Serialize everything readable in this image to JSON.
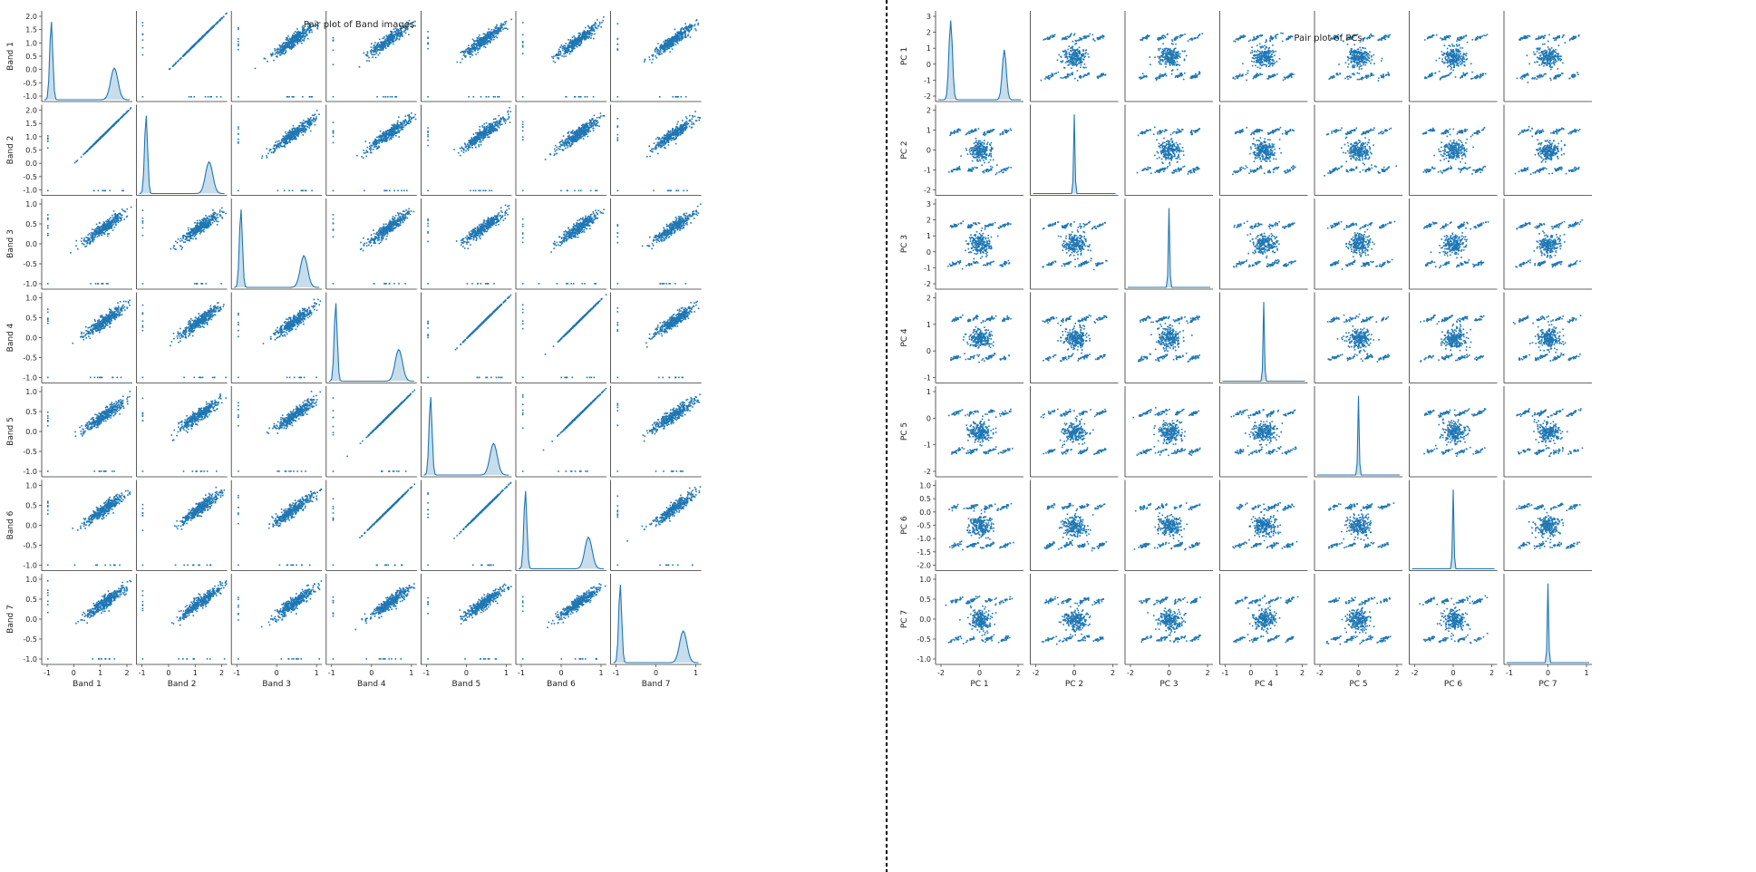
{
  "chart_data": [
    {
      "type": "scatter",
      "subtype": "pair-plot",
      "title": "Pair plot of Band images",
      "variables": [
        "Band 1",
        "Band 2",
        "Band 3",
        "Band 4",
        "Band 5",
        "Band 6",
        "Band 7"
      ],
      "ranges": [
        [
          -1.1,
          2.05
        ],
        [
          -1.1,
          2.05
        ],
        [
          -1.1,
          1.3
        ],
        [
          -1.1,
          1.3
        ],
        [
          -1.1,
          1.3
        ],
        [
          -1.1,
          1.3
        ],
        [
          -1.1,
          1.3
        ]
      ],
      "yticks": [
        [
          "2.0",
          "1.5",
          "1.0",
          "0.5",
          "0.0",
          "-0.5",
          "-1.0"
        ],
        [
          "2.0",
          "1.5",
          "1.0",
          "0.5",
          "0.0",
          "-0.5",
          "-1.0"
        ],
        [
          "1.0",
          "0.5",
          "0.0",
          "-0.5",
          "-1.0"
        ],
        [
          "1.0",
          "0.5",
          "0.0",
          "-0.5",
          "-1.0"
        ],
        [
          "1.0",
          "0.5",
          "0.0",
          "-0.5",
          "-1.0"
        ],
        [
          "1.0",
          "0.5",
          "0.0",
          "-0.5",
          "-1.0"
        ],
        [
          "1.0",
          "0.5",
          "0.0",
          "-0.5",
          "-1.0"
        ]
      ],
      "xticks": [
        [
          "-1",
          "0",
          "1",
          "2"
        ],
        [
          "-1",
          "0",
          "1",
          "2"
        ],
        [
          "-1",
          "0",
          "1"
        ],
        [
          "-1",
          "0",
          "1"
        ],
        [
          "-1",
          "0",
          "1"
        ],
        [
          "-1",
          "0",
          "1"
        ],
        [
          "-1",
          "0",
          "1"
        ]
      ],
      "diagonal": "kde",
      "point_color": "#1f77b4",
      "grid": false
    },
    {
      "type": "scatter",
      "subtype": "pair-plot",
      "title": "Pair plot of PCs",
      "variables": [
        "PC 1",
        "PC 2",
        "PC 3",
        "PC 4",
        "PC 5",
        "PC 6",
        "PC 7"
      ],
      "ranges": [
        [
          -3,
          4
        ],
        [
          -2.8,
          2.6
        ],
        [
          -2.2,
          3.2
        ],
        [
          -1.8,
          2.2
        ],
        [
          -2.2,
          2.0
        ],
        [
          -2.2,
          1.5
        ],
        [
          -1.5,
          1.5
        ]
      ],
      "yticks": [
        [
          "3",
          "2",
          "1",
          "0",
          "-1",
          "-2"
        ],
        [
          "2",
          "1",
          "0",
          "-1",
          "-2"
        ],
        [
          "3",
          "2",
          "1",
          "0",
          "-1",
          "-2"
        ],
        [
          "2",
          "1",
          "0",
          "-1"
        ],
        [
          "1",
          "0",
          "-1",
          "-2"
        ],
        [
          "1.0",
          "0.5",
          "0.0",
          "-0.5",
          "-1.0",
          "-1.5",
          "-2.0"
        ],
        [
          "1.0",
          "0.5",
          "0.0",
          "-0.5",
          "-1.0"
        ]
      ],
      "xticks": [
        [
          "-2",
          "0",
          "2"
        ],
        [
          "-2",
          "0",
          "2"
        ],
        [
          "-2",
          "0",
          "2"
        ],
        [
          "-1",
          "0",
          "1",
          "2"
        ],
        [
          "-2",
          "0",
          "2"
        ],
        [
          "-2",
          "0",
          "2"
        ],
        [
          "-1",
          "0",
          "1"
        ]
      ],
      "diagonal": "kde",
      "point_color": "#1f77b4",
      "grid": false
    }
  ]
}
